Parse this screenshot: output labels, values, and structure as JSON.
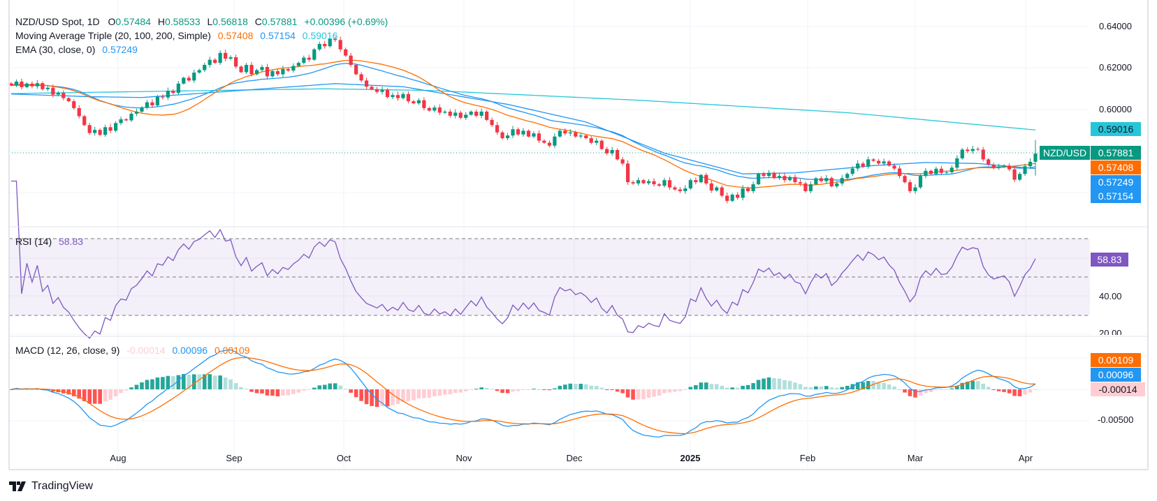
{
  "header": {
    "symbol": "NZD/USD Spot, 1D",
    "o_label": "O",
    "o": "0.57484",
    "h_label": "H",
    "h": "0.58533",
    "l_label": "L",
    "l": "0.56818",
    "c_label": "C",
    "c": "0.57881",
    "change": "+0.00396 (+0.69%)"
  },
  "ma_legend": {
    "label": "Moving Average Triple (20, 100, 200, Simple)",
    "v20": "0.57408",
    "v100": "0.57154",
    "v200": "0.59016"
  },
  "ema_legend": {
    "label": "EMA (30, close, 0)",
    "value": "0.57249"
  },
  "rsi_legend": {
    "label": "RSI (14)",
    "value": "58.83"
  },
  "macd_legend": {
    "label": "MACD (12, 26, close, 9)",
    "hist": "-0.00014",
    "macd": "0.00096",
    "signal": "0.00109"
  },
  "price_axis": {
    "ticks": [
      "0.64000",
      "0.62000",
      "0.60000"
    ],
    "symbol_tag": "NZD/USD",
    "tags": {
      "sma200": "0.59016",
      "last": "0.57881",
      "sma20": "0.57408",
      "ema30": "0.57249",
      "sma100": "0.57154"
    }
  },
  "rsi_axis": {
    "ticks": [
      "40.00",
      "20.00"
    ],
    "tag": "58.83"
  },
  "macd_axis": {
    "ticks": [
      "-0.00500"
    ],
    "tags": {
      "signal": "0.00109",
      "macd": "0.00096",
      "hist": "-0.00014"
    }
  },
  "time_axis": [
    "Aug",
    "Sep",
    "Oct",
    "Nov",
    "Dec",
    "2025",
    "Feb",
    "Mar",
    "Apr"
  ],
  "branding": "TradingView",
  "colors": {
    "up": "#089981",
    "down": "#f23645",
    "sma20": "#ff6d00",
    "sma100": "#2196f3",
    "sma200": "#26c6da",
    "ema30": "#2196f3",
    "rsi": "#7e57c2",
    "macd": "#2196f3",
    "signal": "#ff6d00"
  },
  "chart_data": {
    "type": "candlestick",
    "title": "NZD/USD Spot, 1D",
    "period": "2024-07 to 2025-04-03",
    "ylim": [
      0.55,
      0.645
    ],
    "last_bar": {
      "open": 0.57484,
      "high": 0.58533,
      "low": 0.56818,
      "close": 0.57881
    },
    "closes": [
      0.6116,
      0.6135,
      0.6108,
      0.6125,
      0.6112,
      0.6127,
      0.6098,
      0.6105,
      0.6072,
      0.608,
      0.6055,
      0.604,
      0.6007,
      0.5968,
      0.5925,
      0.5887,
      0.5902,
      0.5878,
      0.5915,
      0.5898,
      0.5935,
      0.5953,
      0.5948,
      0.598,
      0.599,
      0.601,
      0.6035,
      0.602,
      0.6062,
      0.6058,
      0.609,
      0.608,
      0.6125,
      0.6153,
      0.614,
      0.6178,
      0.619,
      0.6215,
      0.624,
      0.6225,
      0.6273,
      0.6245,
      0.6252,
      0.6207,
      0.618,
      0.6215,
      0.617,
      0.619,
      0.6205,
      0.616,
      0.6185,
      0.617,
      0.6195,
      0.6188,
      0.621,
      0.6225,
      0.625,
      0.624,
      0.629,
      0.6316,
      0.6305,
      0.634,
      0.6335,
      0.629,
      0.626,
      0.6215,
      0.617,
      0.614,
      0.611,
      0.6098,
      0.6085,
      0.6095,
      0.606,
      0.607,
      0.6055,
      0.6075,
      0.604,
      0.603,
      0.6045,
      0.6007,
      0.5995,
      0.601,
      0.5985,
      0.599,
      0.597,
      0.5985,
      0.596,
      0.5975,
      0.599,
      0.597,
      0.599,
      0.595,
      0.5925,
      0.589,
      0.5862,
      0.5875,
      0.5905,
      0.588,
      0.5898,
      0.587,
      0.5885,
      0.585,
      0.584,
      0.5826,
      0.587,
      0.5898,
      0.5885,
      0.589,
      0.587,
      0.5875,
      0.5862,
      0.584,
      0.585,
      0.581,
      0.5789,
      0.5805,
      0.576,
      0.574,
      0.565,
      0.5644,
      0.566,
      0.5645,
      0.5655,
      0.564,
      0.5633,
      0.566,
      0.5625,
      0.5615,
      0.5607,
      0.562,
      0.566,
      0.565,
      0.5685,
      0.5644,
      0.561,
      0.5625,
      0.5585,
      0.556,
      0.559,
      0.5575,
      0.562,
      0.5607,
      0.564,
      0.569,
      0.568,
      0.5695,
      0.567,
      0.568,
      0.566,
      0.5675,
      0.565,
      0.5644,
      0.5607,
      0.564,
      0.5669,
      0.5655,
      0.567,
      0.563,
      0.5644,
      0.567,
      0.569,
      0.5716,
      0.574,
      0.5725,
      0.576,
      0.5753,
      0.574,
      0.575,
      0.573,
      0.5716,
      0.568,
      0.565,
      0.5607,
      0.5625,
      0.568,
      0.5705,
      0.569,
      0.5715,
      0.5695,
      0.5698,
      0.572,
      0.5765,
      0.5807,
      0.58,
      0.581,
      0.5807,
      0.576,
      0.5734,
      0.572,
      0.5725,
      0.573,
      0.5712,
      0.5662,
      0.569,
      0.5727,
      0.57484,
      0.57881
    ],
    "sma100_path": [
      [
        0,
        0.6075
      ],
      [
        15,
        0.6062
      ],
      [
        25,
        0.6058
      ],
      [
        40,
        0.6085
      ],
      [
        62,
        0.6125
      ],
      [
        75,
        0.611
      ],
      [
        95,
        0.6025
      ],
      [
        110,
        0.594
      ],
      [
        125,
        0.579
      ],
      [
        140,
        0.569
      ],
      [
        150,
        0.5695
      ],
      [
        165,
        0.573
      ],
      [
        175,
        0.5745
      ],
      [
        185,
        0.574
      ],
      [
        196,
        0.57154
      ]
    ],
    "sma200_path": [
      [
        0,
        0.6077
      ],
      [
        60,
        0.61
      ],
      [
        80,
        0.6092
      ],
      [
        120,
        0.6045
      ],
      [
        160,
        0.5985
      ],
      [
        196,
        0.59016
      ]
    ],
    "rsi_levels": [
      70,
      50,
      30
    ],
    "rsi_ylim": [
      15,
      78
    ],
    "macd_ylim": [
      -0.0085,
      0.007
    ]
  }
}
